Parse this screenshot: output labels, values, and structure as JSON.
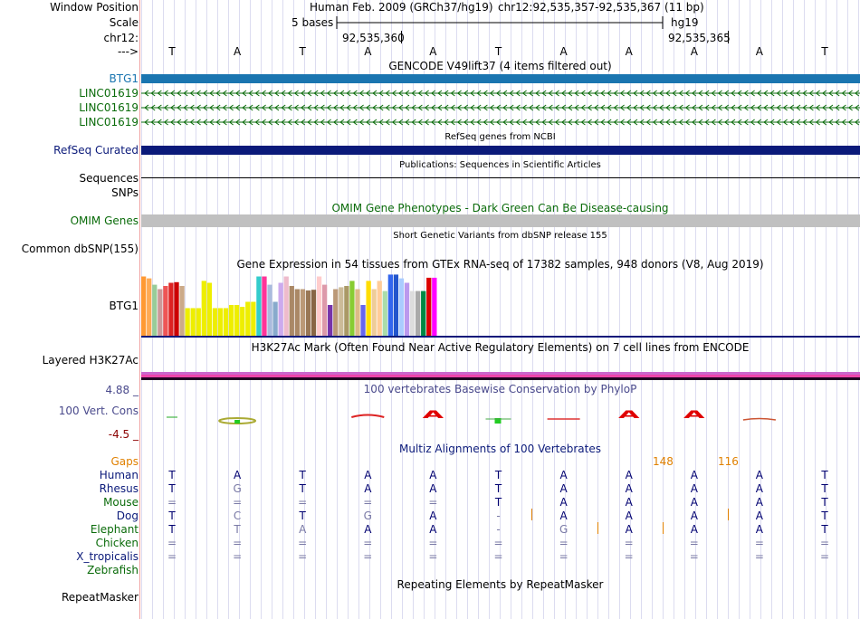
{
  "colors": {
    "grid": "#dcdcf0",
    "leftline": "#f0a0a0",
    "btg1": "#1a75b0",
    "linc": "#0a6b0a",
    "refseq": "#0b1a7a",
    "omim_bar": "#c0c0c0",
    "gaps": "#e08000",
    "phylo_label": "#4a4a8c",
    "conserved": "#000070",
    "mismatch": "#7a7aa6"
  },
  "labels": {
    "window_position": "Window Position",
    "scale": "Scale",
    "chr": "chr12:",
    "arrow": "--->",
    "btg1": "BTG1",
    "linc1": "LINC01619",
    "linc2": "LINC01619",
    "linc3": "LINC01619",
    "refseq": "RefSeq Curated",
    "sequences": "Sequences",
    "snps": "SNPs",
    "omim": "OMIM Genes",
    "common_dbsnp": "Common dbSNP(155)",
    "gtex_btg1": "BTG1",
    "layered": "Layered H3K27Ac",
    "phylo_max": "4.88 _",
    "phylo_name": "100 Vert. Cons",
    "phylo_min": "-4.5 _",
    "gaps": "Gaps",
    "human": "Human",
    "rhesus": "Rhesus",
    "mouse": "Mouse",
    "dog": "Dog",
    "elephant": "Elephant",
    "chicken": "Chicken",
    "xtrop": "X_tropicalis",
    "zebrafish": "Zebrafish",
    "repeatmasker": "RepeatMasker"
  },
  "header": {
    "assembly": "Human Feb. 2009 (GRCh37/hg19)",
    "position": "chr12:92,535,357-92,535,367 (11 bp)",
    "scale_text": "5 bases",
    "scale_db": "hg19",
    "coord1": "92,535,360",
    "coord2": "92,535,365"
  },
  "titles": {
    "gencode": "GENCODE V49lift37 (4 items filtered out)",
    "refseq": "RefSeq genes from NCBI",
    "publications": "Publications: Sequences in Scientific Articles",
    "omim": "OMIM Gene Phenotypes - Dark Green Can Be Disease-causing",
    "short_variants": "Short Genetic Variants from dbSNP release 155",
    "gtex": "Gene Expression in 54 tissues from GTEx RNA-seq of 17382 samples, 948 donors (V8, Aug 2019)",
    "h3k27ac": "H3K27Ac Mark (Often Found Near Active Regulatory Elements) on 7 cell lines from ENCODE",
    "phylop": "100 vertebrates Basewise Conservation by PhyloP",
    "multiz": "Multiz Alignments of 100 Vertebrates",
    "repeatmasker": "Repeating Elements by RepeatMasker"
  },
  "gaps_counts": [
    "148",
    "116"
  ],
  "sequence": [
    "T",
    "A",
    "T",
    "A",
    "A",
    "T",
    "A",
    "A",
    "A",
    "A",
    "T"
  ],
  "alignment": {
    "human": [
      "T",
      "A",
      "T",
      "A",
      "A",
      "T",
      "A",
      "A",
      "A",
      "A",
      "T"
    ],
    "rhesus": [
      "T",
      "G",
      "T",
      "A",
      "A",
      "T",
      "A",
      "A",
      "A",
      "A",
      "T"
    ],
    "mouse": [
      "=",
      "=",
      "=",
      "=",
      "=",
      "T",
      "A",
      "A",
      "A",
      "A",
      "T"
    ],
    "dog": [
      "T",
      "C",
      "T",
      "G",
      "A",
      "-",
      "A",
      "A",
      "A",
      "A",
      "T"
    ],
    "elephant": [
      "T",
      "T",
      "A",
      "A",
      "A",
      "-",
      "G",
      "A",
      "A",
      "A",
      "T"
    ],
    "chicken": [
      "=",
      "=",
      "=",
      "=",
      "=",
      "=",
      "=",
      "=",
      "=",
      "=",
      "="
    ],
    "xtrop": [
      "=",
      "=",
      "=",
      "=",
      "=",
      "=",
      "=",
      "=",
      "=",
      "=",
      "="
    ]
  },
  "gtex_bars": [
    {
      "v": 0.95,
      "c": "#ff9933"
    },
    {
      "v": 0.92,
      "c": "#ffaa55"
    },
    {
      "v": 0.82,
      "c": "#99cc99"
    },
    {
      "v": 0.75,
      "c": "#cc9999"
    },
    {
      "v": 0.8,
      "c": "#ee5555"
    },
    {
      "v": 0.85,
      "c": "#dd2222"
    },
    {
      "v": 0.86,
      "c": "#cc0000"
    },
    {
      "v": 0.8,
      "c": "#ccaa88"
    },
    {
      "v": 0.45,
      "c": "#eeee00"
    },
    {
      "v": 0.45,
      "c": "#eeee00"
    },
    {
      "v": 0.45,
      "c": "#eeee00"
    },
    {
      "v": 0.88,
      "c": "#eeee00"
    },
    {
      "v": 0.85,
      "c": "#eeee00"
    },
    {
      "v": 0.45,
      "c": "#eeee00"
    },
    {
      "v": 0.45,
      "c": "#eeee00"
    },
    {
      "v": 0.45,
      "c": "#eeee00"
    },
    {
      "v": 0.5,
      "c": "#eeee00"
    },
    {
      "v": 0.5,
      "c": "#eeee00"
    },
    {
      "v": 0.47,
      "c": "#eeee00"
    },
    {
      "v": 0.55,
      "c": "#eeee00"
    },
    {
      "v": 0.55,
      "c": "#eeee00"
    },
    {
      "v": 0.95,
      "c": "#33cccc"
    },
    {
      "v": 0.95,
      "c": "#ff3399"
    },
    {
      "v": 0.82,
      "c": "#aabbdd"
    },
    {
      "v": 0.55,
      "c": "#88aacc"
    },
    {
      "v": 0.85,
      "c": "#ccaaee"
    },
    {
      "v": 0.95,
      "c": "#eebbcc"
    },
    {
      "v": 0.8,
      "c": "#aa8866"
    },
    {
      "v": 0.75,
      "c": "#aa8866"
    },
    {
      "v": 0.75,
      "c": "#bb9977"
    },
    {
      "v": 0.73,
      "c": "#997755"
    },
    {
      "v": 0.74,
      "c": "#886644"
    },
    {
      "v": 0.95,
      "c": "#ffcccc"
    },
    {
      "v": 0.82,
      "c": "#dd99aa"
    },
    {
      "v": 0.5,
      "c": "#7733aa"
    },
    {
      "v": 0.75,
      "c": "#bb9977"
    },
    {
      "v": 0.78,
      "c": "#ccbb99"
    },
    {
      "v": 0.8,
      "c": "#aa9966"
    },
    {
      "v": 0.88,
      "c": "#88cc33"
    },
    {
      "v": 0.75,
      "c": "#ddbb88"
    },
    {
      "v": 0.5,
      "c": "#6666ee"
    },
    {
      "v": 0.88,
      "c": "#ffdd00"
    },
    {
      "v": 0.75,
      "c": "#eecc99"
    },
    {
      "v": 0.88,
      "c": "#ffcc99"
    },
    {
      "v": 0.72,
      "c": "#aaddaa"
    },
    {
      "v": 0.98,
      "c": "#3366ee"
    },
    {
      "v": 0.98,
      "c": "#2255cc"
    },
    {
      "v": 0.92,
      "c": "#aaccff"
    },
    {
      "v": 0.85,
      "c": "#bb99ee"
    },
    {
      "v": 0.72,
      "c": "#dddddd"
    },
    {
      "v": 0.72,
      "c": "#aaaaaa"
    },
    {
      "v": 0.72,
      "c": "#008844"
    },
    {
      "v": 0.93,
      "c": "#dd0000"
    },
    {
      "v": 0.93,
      "c": "#ff00ff"
    }
  ]
}
